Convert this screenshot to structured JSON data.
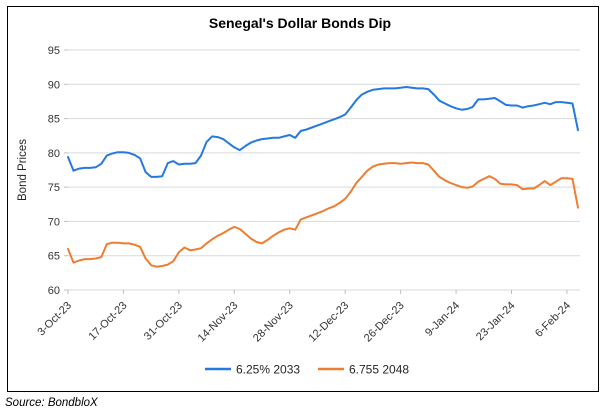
{
  "figure": {
    "source": "Source: BondbloX"
  },
  "colors": {
    "grid": "#D9D9D9",
    "tick": "#BFBFBF",
    "axis_text": "#333333",
    "series_blue": "#2479E1",
    "series_orange": "#ED7D31"
  },
  "chart_data": {
    "type": "line",
    "title": "Senegal's Dollar Bonds Dip",
    "xlabel": "",
    "ylabel": "Bond Prices",
    "ylim": [
      60,
      95
    ],
    "y_ticks": [
      60,
      65,
      70,
      75,
      80,
      85,
      90,
      95
    ],
    "grid": "horizontal",
    "legend_position": "bottom",
    "x_tick_labels": [
      "3-Oct-23",
      "17-Oct-23",
      "31-Oct-23",
      "14-Nov-23",
      "28-Nov-23",
      "12-Dec-23",
      "26-Dec-23",
      "9-Jan-24",
      "23-Jan-24",
      "6-Feb-24"
    ],
    "x_tick_indices": [
      0,
      10,
      20,
      30,
      40,
      50,
      60,
      70,
      80,
      90
    ],
    "categories": [
      "3-Oct-23",
      "4-Oct-23",
      "5-Oct-23",
      "6-Oct-23",
      "9-Oct-23",
      "10-Oct-23",
      "11-Oct-23",
      "12-Oct-23",
      "13-Oct-23",
      "16-Oct-23",
      "17-Oct-23",
      "18-Oct-23",
      "19-Oct-23",
      "20-Oct-23",
      "23-Oct-23",
      "24-Oct-23",
      "25-Oct-23",
      "26-Oct-23",
      "27-Oct-23",
      "30-Oct-23",
      "31-Oct-23",
      "1-Nov-23",
      "2-Nov-23",
      "3-Nov-23",
      "6-Nov-23",
      "7-Nov-23",
      "8-Nov-23",
      "9-Nov-23",
      "10-Nov-23",
      "13-Nov-23",
      "14-Nov-23",
      "15-Nov-23",
      "16-Nov-23",
      "17-Nov-23",
      "20-Nov-23",
      "21-Nov-23",
      "22-Nov-23",
      "23-Nov-23",
      "24-Nov-23",
      "27-Nov-23",
      "28-Nov-23",
      "29-Nov-23",
      "30-Nov-23",
      "1-Dec-23",
      "4-Dec-23",
      "5-Dec-23",
      "6-Dec-23",
      "7-Dec-23",
      "8-Dec-23",
      "11-Dec-23",
      "12-Dec-23",
      "13-Dec-23",
      "14-Dec-23",
      "15-Dec-23",
      "18-Dec-23",
      "19-Dec-23",
      "20-Dec-23",
      "21-Dec-23",
      "22-Dec-23",
      "25-Dec-23",
      "26-Dec-23",
      "27-Dec-23",
      "28-Dec-23",
      "29-Dec-23",
      "1-Jan-24",
      "2-Jan-24",
      "3-Jan-24",
      "4-Jan-24",
      "5-Jan-24",
      "8-Jan-24",
      "9-Jan-24",
      "10-Jan-24",
      "11-Jan-24",
      "12-Jan-24",
      "15-Jan-24",
      "16-Jan-24",
      "17-Jan-24",
      "18-Jan-24",
      "19-Jan-24",
      "22-Jan-24",
      "23-Jan-24",
      "24-Jan-24",
      "25-Jan-24",
      "26-Jan-24",
      "29-Jan-24",
      "30-Jan-24",
      "31-Jan-24",
      "1-Feb-24",
      "2-Feb-24",
      "5-Feb-24",
      "6-Feb-24",
      "7-Feb-24",
      "8-Feb-24"
    ],
    "series": [
      {
        "name": "6.25% 2033",
        "color": "#2479E1",
        "values": [
          79.4,
          77.4,
          77.7,
          77.8,
          77.8,
          77.9,
          78.4,
          79.6,
          79.9,
          80.1,
          80.1,
          80.0,
          79.7,
          79.2,
          77.2,
          76.5,
          76.5,
          76.6,
          78.5,
          78.8,
          78.3,
          78.4,
          78.4,
          78.5,
          79.6,
          81.6,
          82.4,
          82.3,
          82.0,
          81.4,
          80.8,
          80.4,
          81.0,
          81.5,
          81.8,
          82.0,
          82.1,
          82.2,
          82.2,
          82.4,
          82.6,
          82.2,
          83.2,
          83.4,
          83.7,
          84.0,
          84.3,
          84.6,
          84.9,
          85.2,
          85.6,
          86.6,
          87.7,
          88.5,
          88.9,
          89.2,
          89.3,
          89.4,
          89.4,
          89.4,
          89.5,
          89.6,
          89.5,
          89.4,
          89.4,
          89.3,
          88.5,
          87.6,
          87.2,
          86.8,
          86.5,
          86.3,
          86.4,
          86.7,
          87.8,
          87.8,
          87.9,
          88.0,
          87.5,
          87.0,
          86.9,
          86.9,
          86.6,
          86.8,
          86.9,
          87.1,
          87.3,
          87.1,
          87.4,
          87.4,
          87.3,
          87.2,
          83.3
        ]
      },
      {
        "name": "6.755 2048",
        "color": "#ED7D31",
        "values": [
          66.0,
          64.0,
          64.3,
          64.5,
          64.5,
          64.6,
          64.8,
          66.7,
          66.9,
          66.9,
          66.8,
          66.8,
          66.6,
          66.3,
          64.6,
          63.6,
          63.4,
          63.5,
          63.7,
          64.2,
          65.5,
          66.2,
          65.8,
          65.9,
          66.1,
          66.8,
          67.4,
          67.9,
          68.3,
          68.8,
          69.2,
          68.9,
          68.2,
          67.5,
          67.0,
          66.8,
          67.3,
          67.9,
          68.4,
          68.8,
          69.0,
          68.8,
          70.3,
          70.6,
          70.9,
          71.2,
          71.5,
          71.9,
          72.2,
          72.7,
          73.3,
          74.3,
          75.6,
          76.5,
          77.4,
          78.0,
          78.3,
          78.4,
          78.5,
          78.5,
          78.4,
          78.5,
          78.6,
          78.5,
          78.5,
          78.3,
          77.4,
          76.5,
          76.0,
          75.6,
          75.3,
          75.0,
          74.9,
          75.1,
          75.8,
          76.2,
          76.6,
          76.2,
          75.5,
          75.4,
          75.4,
          75.3,
          74.7,
          74.8,
          74.8,
          75.3,
          75.9,
          75.3,
          75.8,
          76.3,
          76.3,
          76.2,
          72.0
        ]
      }
    ]
  }
}
